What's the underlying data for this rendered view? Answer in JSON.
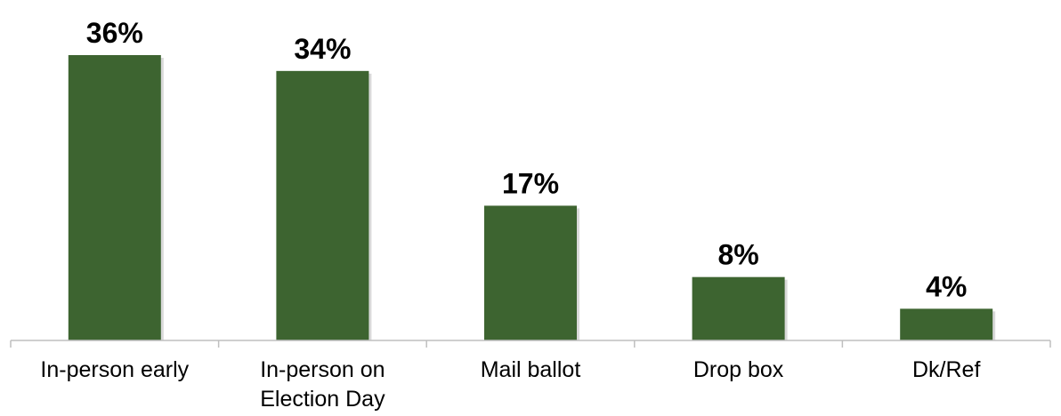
{
  "chart_data": {
    "type": "bar",
    "categories": [
      [
        "In-person early"
      ],
      [
        "In-person on",
        "Election Day"
      ],
      [
        "Mail ballot"
      ],
      [
        "Drop box"
      ],
      [
        "Dk/Ref"
      ]
    ],
    "values": [
      36,
      34,
      17,
      8,
      4
    ],
    "value_labels": [
      "36%",
      "34%",
      "17%",
      "8%",
      "4%"
    ],
    "title": "",
    "xlabel": "",
    "ylabel": "",
    "ylim": [
      0,
      36
    ],
    "grid": false,
    "legend": "none",
    "bar_color": "#3d6430",
    "shadow_color": "#d9d9d9",
    "axis_color": "#bfbfbf"
  }
}
